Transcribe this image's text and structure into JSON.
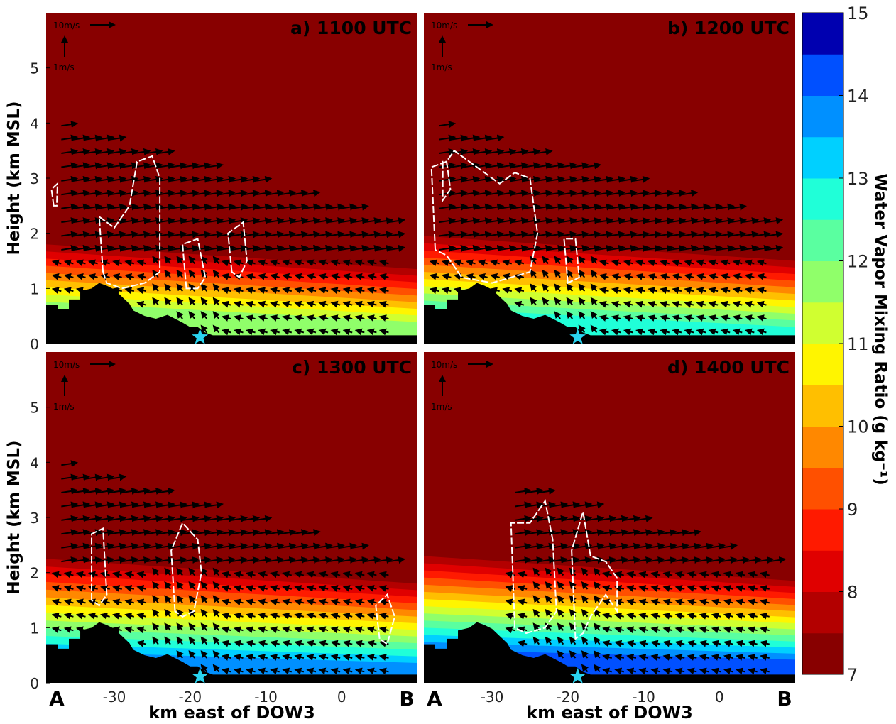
{
  "chart_data": [
    {
      "type": "contour",
      "title": "a) 1100 UTC",
      "ylabel": "Height (km MSL)",
      "xlim": [
        -39,
        10
      ],
      "ylim": [
        0,
        6
      ],
      "yticks": [
        0,
        1,
        2,
        3,
        4,
        5
      ],
      "scale_labels": [
        "10m/s",
        "1m/s"
      ]
    },
    {
      "type": "contour",
      "title": "b) 1200 UTC",
      "xlim": [
        -39,
        10
      ],
      "ylim": [
        0,
        6
      ],
      "scale_labels": [
        "10m/s",
        "1m/s"
      ]
    },
    {
      "type": "contour",
      "title": "c) 1300 UTC",
      "ylabel": "Height (km MSL)",
      "xlabel": "km east of DOW3",
      "xlim": [
        -39,
        10
      ],
      "ylim": [
        0,
        6
      ],
      "xticks": [
        -30,
        -20,
        -10,
        0
      ],
      "yticks": [
        0,
        1,
        2,
        3,
        4,
        5
      ],
      "scale_labels": [
        "10m/s",
        "1m/s"
      ],
      "end_labels": [
        "A",
        "B"
      ]
    },
    {
      "type": "contour",
      "title": "d) 1400 UTC",
      "xlabel": "km east of DOW3",
      "xlim": [
        -39,
        10
      ],
      "ylim": [
        0,
        6
      ],
      "xticks": [
        -30,
        -20,
        -10,
        0
      ],
      "scale_labels": [
        "10m/s",
        "1m/s"
      ],
      "end_labels": [
        "A",
        "B"
      ]
    },
    {
      "type": "colorbar",
      "label": "Water Vapor Mixing Ratio (g kg⁻¹)",
      "ylim": [
        7,
        15
      ],
      "yticks": [
        7,
        8,
        9,
        10,
        11,
        12,
        13,
        14,
        15
      ],
      "colors": [
        "#880000",
        "#b30000",
        "#e00000",
        "#ff1a00",
        "#ff5000",
        "#ff8800",
        "#ffbf00",
        "#fff500",
        "#d0ff30",
        "#90ff6a",
        "#5affa0",
        "#20ffd8",
        "#00d0ff",
        "#0090ff",
        "#0050ff",
        "#0000b0"
      ]
    }
  ]
}
